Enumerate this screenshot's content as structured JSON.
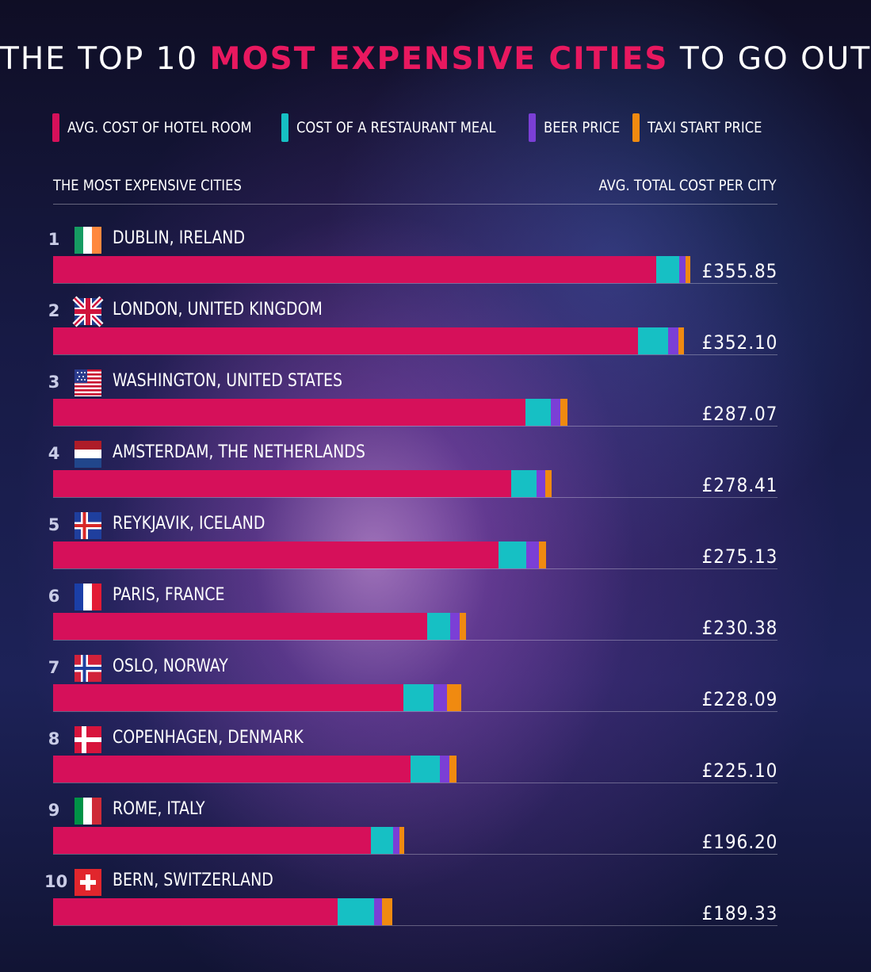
{
  "title": {
    "prefix": "THE TOP 10 ",
    "highlight": "MOST EXPENSIVE CITIES",
    "suffix": " TO GO OUT"
  },
  "legend": [
    {
      "label": "AVG. COST OF HOTEL ROOM",
      "color": "#d6105a"
    },
    {
      "label": "COST OF A RESTAURANT MEAL",
      "color": "#16c0c4"
    },
    {
      "label": "BEER PRICE",
      "color": "#7b3fd6"
    },
    {
      "label": "TAXI START PRICE",
      "color": "#f08a10"
    }
  ],
  "columns": {
    "left": "THE MOST EXPENSIVE CITIES",
    "right": "AVG. TOTAL COST PER CITY"
  },
  "chart_data": {
    "type": "bar",
    "orientation": "horizontal",
    "stacked": true,
    "title": "THE TOP 10 MOST EXPENSIVE CITIES TO GO OUT",
    "xlim": [
      0,
      400
    ],
    "grid": false,
    "legend_position": "top",
    "series_names": [
      "AVG. COST OF HOTEL ROOM",
      "COST OF A RESTAURANT MEAL",
      "BEER PRICE",
      "TAXI START PRICE"
    ],
    "rows": [
      {
        "rank": "1",
        "city": "DUBLIN, IRELAND",
        "flag": "ireland-flag-icon",
        "values": [
          336.6,
          12.8,
          3.9,
          2.6
        ],
        "total_label": "£355.85"
      },
      {
        "rank": "2",
        "city": "LONDON, UNITED KINGDOM",
        "flag": "united-kingdom-flag-icon",
        "values": [
          326.4,
          17.1,
          5.4,
          3.2
        ],
        "total_label": "£352.10"
      },
      {
        "rank": "3",
        "city": "WASHINGTON, UNITED STATES",
        "flag": "united-states-flag-icon",
        "values": [
          263.5,
          14.2,
          5.5,
          3.9
        ],
        "total_label": "£287.07"
      },
      {
        "rank": "4",
        "city": "AMSTERDAM, THE NETHERLANDS",
        "flag": "netherlands-flag-icon",
        "values": [
          255.7,
          14.4,
          4.5,
          3.8
        ],
        "total_label": "£278.41"
      },
      {
        "rank": "5",
        "city": "REYKJAVIK, ICELAND",
        "flag": "iceland-flag-icon",
        "values": [
          248.7,
          15.4,
          7.1,
          3.9
        ],
        "total_label": "£275.13"
      },
      {
        "rank": "6",
        "city": "PARIS, FRANCE",
        "flag": "france-flag-icon",
        "values": [
          209.0,
          12.8,
          5.2,
          3.4
        ],
        "total_label": "£230.38"
      },
      {
        "rank": "7",
        "city": "OSLO, NORWAY",
        "flag": "norway-flag-icon",
        "values": [
          195.6,
          16.9,
          7.2,
          8.4
        ],
        "total_label": "£228.09"
      },
      {
        "rank": "8",
        "city": "COPENHAGEN, DENMARK",
        "flag": "denmark-flag-icon",
        "values": [
          199.6,
          16.2,
          5.4,
          3.9
        ],
        "total_label": "£225.10"
      },
      {
        "rank": "9",
        "city": "ROME, ITALY",
        "flag": "italy-flag-icon",
        "values": [
          177.6,
          12.4,
          3.4,
          2.8
        ],
        "total_label": "£196.20"
      },
      {
        "rank": "10",
        "city": "BERN, SWITZERLAND",
        "flag": "switzerland-flag-icon",
        "values": [
          158.9,
          20.5,
          4.4,
          5.5
        ],
        "total_label": "£189.33"
      }
    ]
  }
}
